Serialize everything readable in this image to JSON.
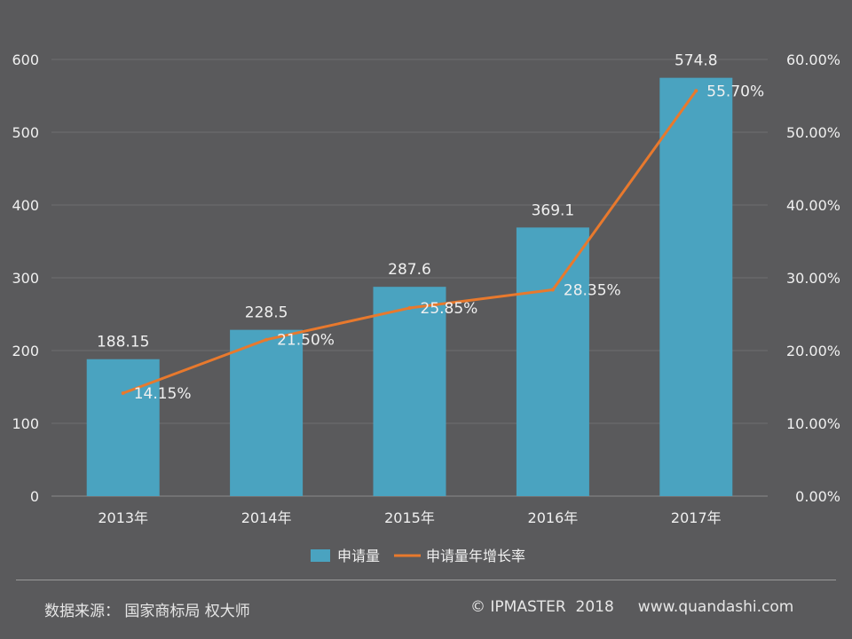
{
  "chart_data": {
    "type": "bar",
    "categories": [
      "2013年",
      "2014年",
      "2015年",
      "2016年",
      "2017年"
    ],
    "series": [
      {
        "name": "申请量",
        "type": "bar",
        "axis": "left",
        "values": [
          188.15,
          228.5,
          287.6,
          369.1,
          574.8
        ],
        "labels": [
          "188.15",
          "228.5",
          "287.6",
          "369.1",
          "574.8"
        ],
        "color": "#4aa3c0"
      },
      {
        "name": "申请量年增长率",
        "type": "line",
        "axis": "right",
        "values": [
          14.15,
          21.5,
          25.85,
          28.35,
          55.7
        ],
        "labels": [
          "14.15%",
          "21.50%",
          "25.85%",
          "28.35%",
          "55.70%"
        ],
        "color": "#e8792d"
      }
    ],
    "ylim_left": [
      0,
      600
    ],
    "yticks_left": [
      "0",
      "100",
      "200",
      "300",
      "400",
      "500",
      "600"
    ],
    "ylim_right": [
      0,
      60
    ],
    "yticks_right": [
      "0.00%",
      "10.00%",
      "20.00%",
      "30.00%",
      "40.00%",
      "50.00%",
      "60.00%"
    ],
    "grid": true,
    "legend_position": "bottom"
  },
  "footer": {
    "source": "数据来源： 国家商标局  权大师",
    "copyright": "© IPMASTER  2018     www.quandashi.com"
  }
}
